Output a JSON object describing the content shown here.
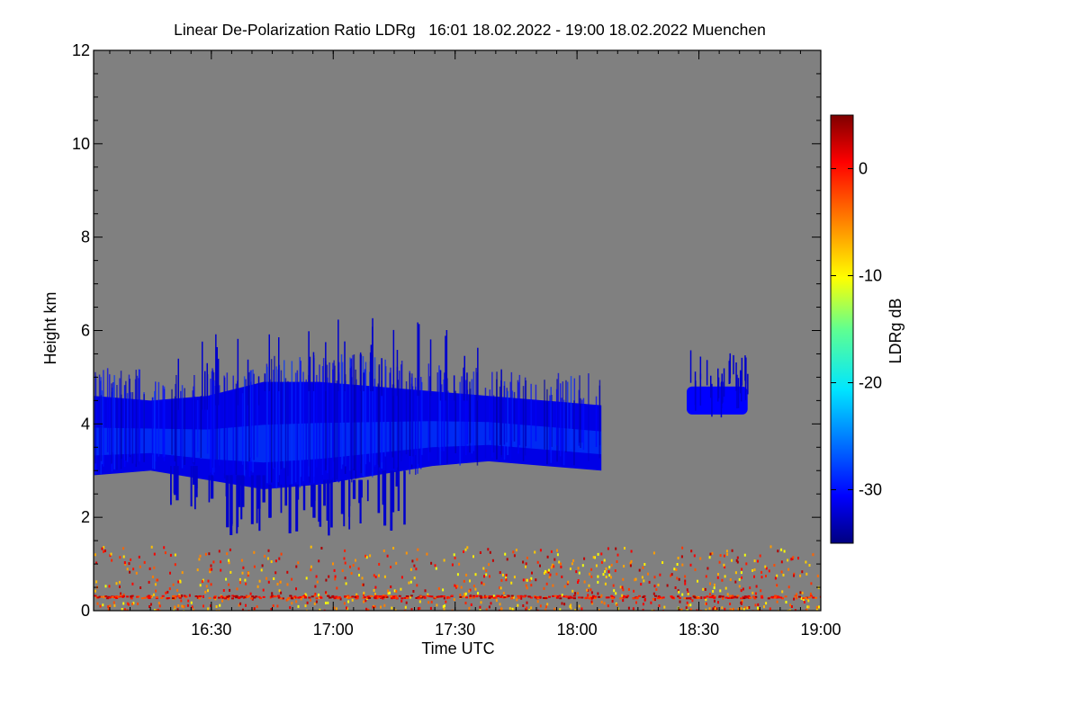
{
  "chart_data": {
    "type": "heatmap",
    "title": "Linear De-Polarization Ratio LDRg   16:01 18.02.2022 - 19:00 18.02.2022 Muenchen",
    "xlabel": "Time UTC",
    "ylabel": "Height km",
    "xlim_hours": [
      16.017,
      19.0
    ],
    "ylim_km": [
      0,
      12
    ],
    "x_ticks": [
      {
        "value": 16.5,
        "label": "16:30"
      },
      {
        "value": 17.0,
        "label": "17:00"
      },
      {
        "value": 17.5,
        "label": "17:30"
      },
      {
        "value": 18.0,
        "label": "18:00"
      },
      {
        "value": 18.5,
        "label": "18:30"
      },
      {
        "value": 19.0,
        "label": "19:00"
      }
    ],
    "y_ticks": [
      0,
      2,
      4,
      6,
      8,
      10,
      12
    ],
    "background_color": "#808080",
    "colorbar": {
      "label": "LDRg dB",
      "range": [
        -35,
        5
      ],
      "ticks": [
        0,
        -10,
        -20,
        -30
      ],
      "colormap": "jet"
    },
    "features": [
      {
        "name": "cloud-layer",
        "ldr_db": -31,
        "time_start": 16.02,
        "time_end": 18.1,
        "base_km": [
          2.9,
          3.0,
          2.8,
          2.6,
          2.7,
          2.9,
          3.1,
          3.2,
          3.1,
          3.0
        ],
        "top_km": [
          4.6,
          4.5,
          4.6,
          4.9,
          4.9,
          4.8,
          4.7,
          4.6,
          4.5,
          4.4
        ]
      },
      {
        "name": "fallstreaks",
        "ldr_db": -32,
        "time_start": 16.3,
        "time_end": 17.3,
        "lowest_km": 1.6
      },
      {
        "name": "upper-cloud-patch",
        "ldr_db": -30,
        "time_start": 18.45,
        "time_end": 18.7,
        "base_km": 4.2,
        "top_km": 4.8
      },
      {
        "name": "boundary-layer-aerosol",
        "ldr_db": -5,
        "time_start": 16.02,
        "time_end": 19.0,
        "base_km": 0.0,
        "top_km": 1.4
      },
      {
        "name": "near-surface-band",
        "ldr_db": 0,
        "height_km": 0.3
      }
    ]
  }
}
